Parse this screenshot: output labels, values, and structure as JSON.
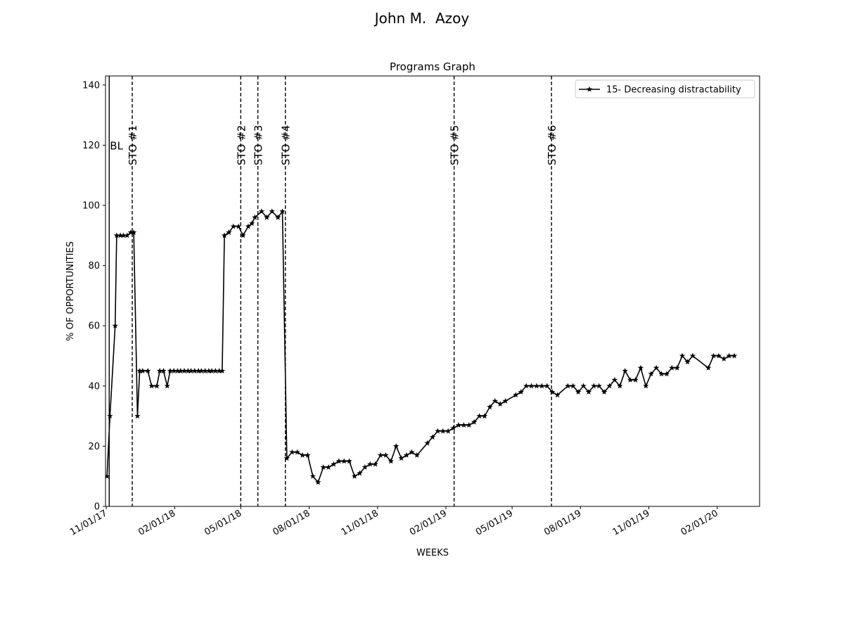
{
  "figure_title": "John M.  Azoy",
  "chart_data": {
    "type": "line",
    "title": "Programs Graph",
    "xlabel": "WEEKS",
    "ylabel": "% OF OPPORTUNITIES",
    "ylim": [
      0,
      143
    ],
    "xlim": [
      "2017-10-31",
      "2020-03-29"
    ],
    "yticks": [
      0,
      20,
      40,
      60,
      80,
      100,
      120,
      140
    ],
    "xticks": [
      {
        "date": "2017-11-01",
        "label": "11/01/17"
      },
      {
        "date": "2018-02-01",
        "label": "02/01/18"
      },
      {
        "date": "2018-05-01",
        "label": "05/01/18"
      },
      {
        "date": "2018-08-01",
        "label": "08/01/18"
      },
      {
        "date": "2018-11-01",
        "label": "11/01/18"
      },
      {
        "date": "2019-02-01",
        "label": "02/01/19"
      },
      {
        "date": "2019-05-01",
        "label": "05/01/19"
      },
      {
        "date": "2019-08-01",
        "label": "08/01/19"
      },
      {
        "date": "2019-11-01",
        "label": "11/01/19"
      },
      {
        "date": "2020-02-01",
        "label": "02/01/20"
      }
    ],
    "legend_position": "upper right",
    "grid": false,
    "series": [
      {
        "name": "15- Decreasing distractability",
        "color": "#000000",
        "marker": "star",
        "points": [
          [
            "2017-11-02",
            10
          ],
          [
            "2017-11-06",
            30
          ],
          [
            "2017-11-13",
            60
          ],
          [
            "2017-11-15",
            90
          ],
          [
            "2017-11-20",
            90
          ],
          [
            "2017-11-24",
            90
          ],
          [
            "2017-11-29",
            90
          ],
          [
            "2017-12-04",
            91
          ],
          [
            "2017-12-08",
            91
          ],
          [
            "2017-12-13",
            30
          ],
          [
            "2017-12-16",
            45
          ],
          [
            "2017-12-20",
            45
          ],
          [
            "2017-12-27",
            45
          ],
          [
            "2018-01-01",
            40
          ],
          [
            "2018-01-08",
            40
          ],
          [
            "2018-01-12",
            45
          ],
          [
            "2018-01-17",
            45
          ],
          [
            "2018-01-22",
            40
          ],
          [
            "2018-01-26",
            45
          ],
          [
            "2018-01-31",
            45
          ],
          [
            "2018-02-05",
            45
          ],
          [
            "2018-02-09",
            45
          ],
          [
            "2018-02-14",
            45
          ],
          [
            "2018-02-19",
            45
          ],
          [
            "2018-02-23",
            45
          ],
          [
            "2018-02-28",
            45
          ],
          [
            "2018-03-05",
            45
          ],
          [
            "2018-03-09",
            45
          ],
          [
            "2018-03-14",
            45
          ],
          [
            "2018-03-19",
            45
          ],
          [
            "2018-03-23",
            45
          ],
          [
            "2018-03-28",
            45
          ],
          [
            "2018-04-02",
            45
          ],
          [
            "2018-04-06",
            45
          ],
          [
            "2018-04-09",
            90
          ],
          [
            "2018-04-15",
            91
          ],
          [
            "2018-04-21",
            93
          ],
          [
            "2018-04-28",
            93
          ],
          [
            "2018-05-04",
            90
          ],
          [
            "2018-05-11",
            93
          ],
          [
            "2018-05-16",
            94
          ],
          [
            "2018-05-20",
            96
          ],
          [
            "2018-05-29",
            98
          ],
          [
            "2018-06-05",
            96
          ],
          [
            "2018-06-12",
            98
          ],
          [
            "2018-06-20",
            96
          ],
          [
            "2018-06-26",
            98
          ],
          [
            "2018-07-02",
            16
          ],
          [
            "2018-07-09",
            18
          ],
          [
            "2018-07-16",
            18
          ],
          [
            "2018-07-23",
            17
          ],
          [
            "2018-07-30",
            17
          ],
          [
            "2018-08-06",
            10
          ],
          [
            "2018-08-13",
            8
          ],
          [
            "2018-08-20",
            13
          ],
          [
            "2018-08-27",
            13
          ],
          [
            "2018-09-03",
            14
          ],
          [
            "2018-09-10",
            15
          ],
          [
            "2018-09-17",
            15
          ],
          [
            "2018-09-24",
            15
          ],
          [
            "2018-10-01",
            10
          ],
          [
            "2018-10-08",
            11
          ],
          [
            "2018-10-15",
            13
          ],
          [
            "2018-10-22",
            14
          ],
          [
            "2018-10-29",
            14
          ],
          [
            "2018-11-05",
            17
          ],
          [
            "2018-11-12",
            17
          ],
          [
            "2018-11-19",
            15
          ],
          [
            "2018-11-26",
            20
          ],
          [
            "2018-12-03",
            16
          ],
          [
            "2018-12-10",
            17
          ],
          [
            "2018-12-17",
            18
          ],
          [
            "2018-12-24",
            17
          ],
          [
            "2019-01-07",
            21
          ],
          [
            "2019-01-14",
            23
          ],
          [
            "2019-01-21",
            25
          ],
          [
            "2019-01-28",
            25
          ],
          [
            "2019-02-04",
            25
          ],
          [
            "2019-02-11",
            26
          ],
          [
            "2019-02-18",
            27
          ],
          [
            "2019-02-25",
            27
          ],
          [
            "2019-03-04",
            27
          ],
          [
            "2019-03-11",
            28
          ],
          [
            "2019-03-18",
            30
          ],
          [
            "2019-03-25",
            30
          ],
          [
            "2019-04-01",
            33
          ],
          [
            "2019-04-08",
            35
          ],
          [
            "2019-04-15",
            34
          ],
          [
            "2019-04-22",
            35
          ],
          [
            "2019-05-06",
            37
          ],
          [
            "2019-05-13",
            38
          ],
          [
            "2019-05-20",
            40
          ],
          [
            "2019-05-27",
            40
          ],
          [
            "2019-06-03",
            40
          ],
          [
            "2019-06-10",
            40
          ],
          [
            "2019-06-17",
            40
          ],
          [
            "2019-06-24",
            38
          ],
          [
            "2019-07-01",
            37
          ],
          [
            "2019-07-15",
            40
          ],
          [
            "2019-07-22",
            40
          ],
          [
            "2019-07-29",
            38
          ],
          [
            "2019-08-05",
            40
          ],
          [
            "2019-08-12",
            38
          ],
          [
            "2019-08-19",
            40
          ],
          [
            "2019-08-26",
            40
          ],
          [
            "2019-09-02",
            38
          ],
          [
            "2019-09-09",
            40
          ],
          [
            "2019-09-16",
            42
          ],
          [
            "2019-09-23",
            40
          ],
          [
            "2019-09-30",
            45
          ],
          [
            "2019-10-07",
            42
          ],
          [
            "2019-10-14",
            42
          ],
          [
            "2019-10-21",
            46
          ],
          [
            "2019-10-28",
            40
          ],
          [
            "2019-11-04",
            44
          ],
          [
            "2019-11-11",
            46
          ],
          [
            "2019-11-18",
            44
          ],
          [
            "2019-11-25",
            44
          ],
          [
            "2019-12-02",
            46
          ],
          [
            "2019-12-09",
            46
          ],
          [
            "2019-12-16",
            50
          ],
          [
            "2019-12-23",
            48
          ],
          [
            "2019-12-30",
            50
          ],
          [
            "2020-01-20",
            46
          ],
          [
            "2020-01-27",
            50
          ],
          [
            "2020-02-03",
            50
          ],
          [
            "2020-02-10",
            49
          ],
          [
            "2020-02-17",
            50
          ],
          [
            "2020-02-24",
            50
          ]
        ]
      }
    ],
    "phase_lines": [
      {
        "date": "2017-11-05",
        "label": "BL",
        "style": "solid",
        "rotated": false
      },
      {
        "date": "2017-12-06",
        "label": "STO #1",
        "style": "dashed",
        "rotated": true
      },
      {
        "date": "2018-05-01",
        "label": "STO #2",
        "style": "dashed",
        "rotated": true
      },
      {
        "date": "2018-05-24",
        "label": "STO #3",
        "style": "dashed",
        "rotated": true
      },
      {
        "date": "2018-06-30",
        "label": "STO #4",
        "style": "dashed",
        "rotated": true
      },
      {
        "date": "2019-02-12",
        "label": "STO #5",
        "style": "dashed",
        "rotated": true
      },
      {
        "date": "2019-06-23",
        "label": "STO #6",
        "style": "dashed",
        "rotated": true
      }
    ]
  }
}
